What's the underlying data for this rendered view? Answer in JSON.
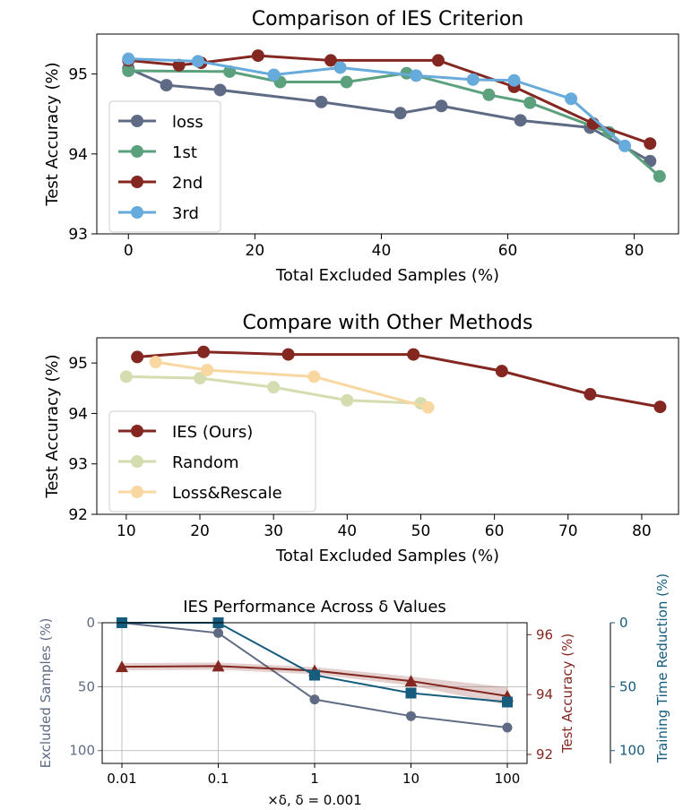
{
  "chart_data": [
    {
      "type": "line",
      "title": "Comparison of IES Criterion",
      "xlabel": "Total Excluded Samples (%)",
      "ylabel": "Test Accuracy (%)",
      "xlim": [
        -5,
        87
      ],
      "ylim": [
        93,
        95.5
      ],
      "xticks": [
        0,
        20,
        40,
        60,
        80
      ],
      "yticks": [
        93,
        94,
        95
      ],
      "legend": "lower-left",
      "grid": false,
      "series": [
        {
          "name": "loss",
          "color": "#5f6b84",
          "x": [
            0,
            6,
            14.5,
            30.5,
            43,
            49.5,
            62,
            73,
            82.5
          ],
          "y": [
            95.07,
            94.86,
            94.8,
            94.65,
            94.51,
            94.6,
            94.42,
            94.33,
            93.91
          ]
        },
        {
          "name": "1st",
          "color": "#5ba17d",
          "x": [
            0,
            16,
            24,
            34.5,
            44,
            57,
            63.5,
            76,
            84
          ],
          "y": [
            95.04,
            95.03,
            94.9,
            94.9,
            95.01,
            94.74,
            94.64,
            94.27,
            93.72
          ]
        },
        {
          "name": "2nd",
          "color": "#842721",
          "x": [
            0,
            8,
            11.5,
            20.5,
            32,
            49,
            61,
            73.5,
            82.5
          ],
          "y": [
            95.17,
            95.11,
            95.14,
            95.23,
            95.17,
            95.17,
            94.84,
            94.38,
            94.13
          ]
        },
        {
          "name": "3rd",
          "color": "#66abdb",
          "x": [
            0,
            11,
            23,
            33.5,
            45.5,
            54.5,
            61,
            70,
            78.5
          ],
          "y": [
            95.19,
            95.16,
            94.99,
            95.08,
            94.98,
            94.93,
            94.92,
            94.69,
            94.1
          ]
        }
      ]
    },
    {
      "type": "line",
      "title": "Compare with Other Methods",
      "xlabel": "Total Excluded Samples (%)",
      "ylabel": "Test Accuracy (%)",
      "xlim": [
        6,
        85
      ],
      "ylim": [
        92,
        95.5
      ],
      "xticks": [
        10,
        20,
        30,
        40,
        50,
        60,
        70,
        80
      ],
      "yticks": [
        92,
        93,
        94,
        95
      ],
      "legend": "lower-left",
      "grid": false,
      "series": [
        {
          "name": "IES (Ours)",
          "color": "#842721",
          "x": [
            11.5,
            20.5,
            32,
            49,
            61,
            73,
            82.5
          ],
          "y": [
            95.12,
            95.22,
            95.17,
            95.17,
            94.84,
            94.38,
            94.13
          ]
        },
        {
          "name": "Random",
          "color": "#d4ddb0",
          "x": [
            10,
            20,
            30,
            40,
            50
          ],
          "y": [
            94.73,
            94.7,
            94.52,
            94.26,
            94.2
          ]
        },
        {
          "name": "Loss&Rescale",
          "color": "#f9d7a1",
          "x": [
            14,
            21,
            35.5,
            51
          ],
          "y": [
            95.02,
            94.86,
            94.73,
            94.12
          ]
        }
      ]
    },
    {
      "type": "line",
      "title": "IES Performance Across δ Values",
      "xlabel": "×δ, δ = 0.001",
      "xcategories": [
        "0.01",
        "0.1",
        "1",
        "10",
        "100"
      ],
      "grid": true,
      "axes": [
        {
          "side": "left",
          "label": "Excluded Samples (%)",
          "color": "#5f6b84",
          "ylim": [
            0,
            110
          ],
          "inverted": true,
          "ticks": [
            0,
            50,
            100
          ]
        },
        {
          "side": "right",
          "label": "Test Accuracy (%)",
          "color": "#842721",
          "ylim": [
            91.7,
            96.4
          ],
          "ticks": [
            92,
            94,
            96
          ]
        },
        {
          "side": "right-offset",
          "label": "Training Time Reduction (%)",
          "color": "#155c7d",
          "ylim": [
            0,
            110
          ],
          "inverted": true,
          "ticks": [
            0,
            50,
            100
          ]
        }
      ],
      "series": [
        {
          "name": "Excluded Samples",
          "axis": 0,
          "color": "#5f6b84",
          "marker": "circle",
          "values": [
            0,
            8,
            60,
            73,
            82
          ]
        },
        {
          "name": "Test Accuracy",
          "axis": 1,
          "color": "#842721",
          "marker": "triangle",
          "values": [
            94.93,
            94.95,
            94.8,
            94.45,
            93.95
          ],
          "band": [
            0.12,
            0.12,
            0.12,
            0.15,
            0.3
          ]
        },
        {
          "name": "Training Time Reduction",
          "axis": 2,
          "color": "#155c7d",
          "marker": "square",
          "values": [
            0,
            0,
            41,
            55,
            62
          ]
        }
      ]
    }
  ]
}
